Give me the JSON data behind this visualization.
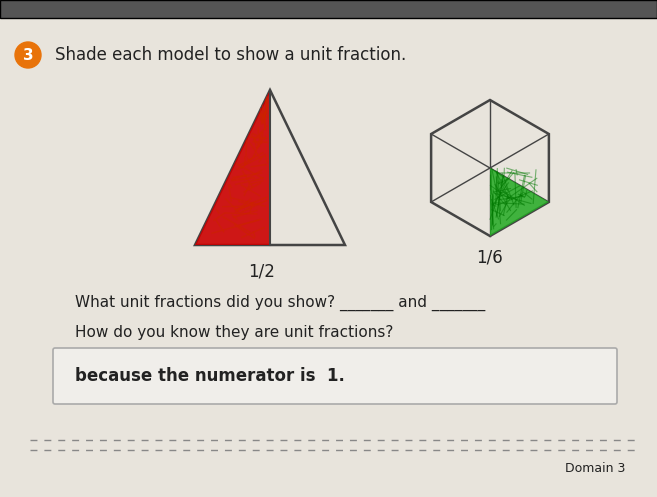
{
  "bg_color": "#e8e4dc",
  "title": "Shade each model to show a unit fraction.",
  "question_number": "3",
  "label_half": "1/2",
  "label_sixth": "1/6",
  "question1": "What unit fractions did you show? _______ and _______",
  "question2": "How do you know they are unit fractions?",
  "answer": "because the numerator is  1.",
  "domain_text": "Domain 3",
  "triangle_color": "#cc0000",
  "hexagon_shade_color": "#22aa22",
  "outline_color": "#444444",
  "text_color": "#222222",
  "box_bg": "#f0eeea"
}
